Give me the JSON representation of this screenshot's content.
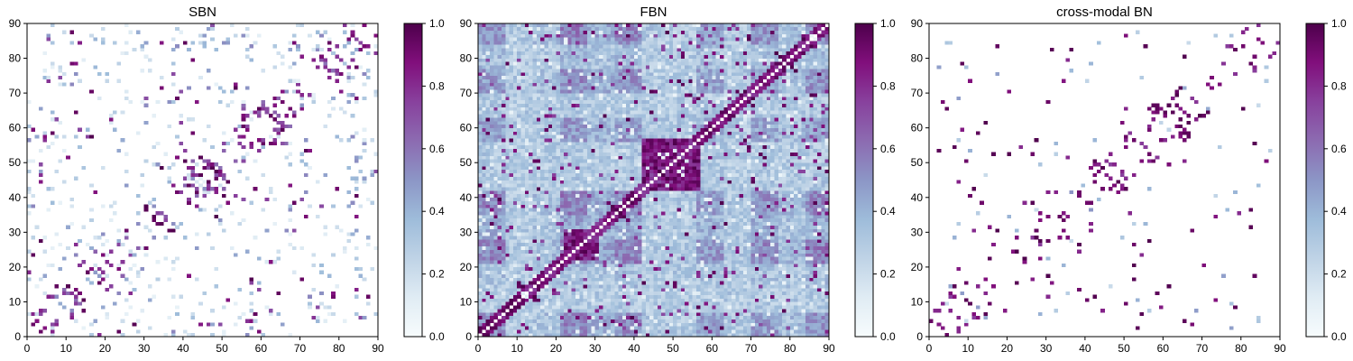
{
  "chart_data": [
    {
      "type": "heatmap",
      "title": "SBN",
      "xlim": [
        0,
        90
      ],
      "ylim": [
        0,
        90
      ],
      "grid": false,
      "x_ticks": [
        "0",
        "10",
        "20",
        "30",
        "40",
        "50",
        "60",
        "70",
        "80",
        "90"
      ],
      "y_ticks": [
        "0",
        "10",
        "20",
        "30",
        "40",
        "50",
        "60",
        "70",
        "80",
        "90"
      ],
      "colorbar": {
        "min": 0.0,
        "max": 1.0,
        "ticks": [
          "0.0",
          "0.2",
          "0.4",
          "0.6",
          "0.8",
          "1.0"
        ]
      },
      "colormap": [
        "#f7fcfd",
        "#e0ecf4",
        "#bfd3e6",
        "#9ebcda",
        "#8c96c6",
        "#8c6bb1",
        "#88419d",
        "#810f7c",
        "#4d004b"
      ],
      "matrix_summary": "sparse structural connectivity matrix, mostly near 0 with scattered strong connections near 1"
    },
    {
      "type": "heatmap",
      "title": "FBN",
      "xlim": [
        0,
        90
      ],
      "ylim": [
        0,
        90
      ],
      "grid": false,
      "x_ticks": [
        "0",
        "10",
        "20",
        "30",
        "40",
        "50",
        "60",
        "70",
        "80",
        "90"
      ],
      "y_ticks": [
        "0",
        "10",
        "20",
        "30",
        "40",
        "50",
        "60",
        "70",
        "80",
        "90"
      ],
      "colorbar": {
        "min": 0.0,
        "max": 1.0,
        "ticks": [
          "0.0",
          "0.2",
          "0.4",
          "0.6",
          "0.8",
          "1.0"
        ]
      },
      "colormap": [
        "#f7fcfd",
        "#e0ecf4",
        "#bfd3e6",
        "#9ebcda",
        "#8c96c6",
        "#8c6bb1",
        "#88419d",
        "#810f7c",
        "#4d004b"
      ],
      "matrix_summary": "dense functional connectivity matrix with blocky clusters, strong diagonal and central block around regions 42-56"
    },
    {
      "type": "heatmap",
      "title": "cross-modal BN",
      "xlim": [
        0,
        90
      ],
      "ylim": [
        0,
        90
      ],
      "grid": false,
      "x_ticks": [
        "0",
        "10",
        "20",
        "30",
        "40",
        "50",
        "60",
        "70",
        "80",
        "90"
      ],
      "y_ticks": [
        "0",
        "10",
        "20",
        "30",
        "40",
        "50",
        "60",
        "70",
        "80",
        "90"
      ],
      "colorbar": {
        "min": 0.0,
        "max": 1.0,
        "ticks": [
          "0.0",
          "0.2",
          "0.4",
          "0.6",
          "0.8",
          "1.0"
        ]
      },
      "colormap": [
        "#f7fcfd",
        "#e0ecf4",
        "#bfd3e6",
        "#9ebcda",
        "#8c96c6",
        "#8c6bb1",
        "#88419d",
        "#810f7c",
        "#4d004b"
      ],
      "matrix_summary": "sparse cross-modal connectivity matrix, nearly white background with scattered strong connections"
    }
  ]
}
